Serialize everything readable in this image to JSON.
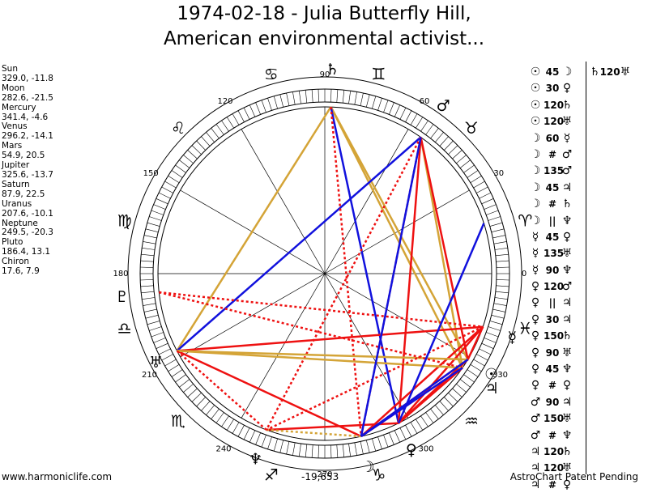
{
  "header": {
    "title_line1": "1974-02-18 - Julia Butterfly Hill,",
    "title_line2": "American environmental activist..."
  },
  "planets": [
    {
      "name": "Sun",
      "coords": "329.0, -11.8"
    },
    {
      "name": "Moon",
      "coords": "282.6, -21.5"
    },
    {
      "name": "Mercury",
      "coords": "341.4, -4.6"
    },
    {
      "name": "Venus",
      "coords": "296.2, -14.1"
    },
    {
      "name": "Mars",
      "coords": "54.9, 20.5"
    },
    {
      "name": "Jupiter",
      "coords": "325.6, -13.7"
    },
    {
      "name": "Saturn",
      "coords": "87.9, 22.5"
    },
    {
      "name": "Uranus",
      "coords": "207.6, -10.1"
    },
    {
      "name": "Neptune",
      "coords": "249.5, -20.3"
    },
    {
      "name": "Pluto",
      "coords": "186.4, 13.1"
    },
    {
      "name": "Chiron",
      "coords": "17.6, 7.9"
    }
  ],
  "wheel": {
    "degree_labels": [
      "90",
      "120",
      "60",
      "150",
      "30",
      "180",
      "0",
      "210",
      "330",
      "240",
      "300",
      "270"
    ],
    "zodiac_signs": [
      "♈",
      "♉",
      "♊",
      "♋",
      "♌",
      "♍",
      "♎",
      "♏",
      "♐",
      "♑",
      "♒",
      "♓"
    ],
    "planet_glyphs": {
      "sun": "☉",
      "moon": "☽",
      "mercury": "☿",
      "venus": "♀",
      "mars": "♂",
      "jupiter": "♃",
      "saturn": "♄",
      "uranus": "♅",
      "neptune": "♆",
      "pluto": "♇"
    }
  },
  "aspects": [
    {
      "p1": "☉",
      "aspect": "45",
      "p2": "☽"
    },
    {
      "p1": "☉",
      "aspect": "30",
      "p2": "♀"
    },
    {
      "p1": "☉",
      "aspect": "120",
      "p2": "♄"
    },
    {
      "p1": "☉",
      "aspect": "120",
      "p2": "♅"
    },
    {
      "p1": "☽",
      "aspect": "60",
      "p2": "☿"
    },
    {
      "p1": "☽",
      "aspect": "#",
      "p2": "♂"
    },
    {
      "p1": "☽",
      "aspect": "135",
      "p2": "♂"
    },
    {
      "p1": "☽",
      "aspect": "45",
      "p2": "♃"
    },
    {
      "p1": "☽",
      "aspect": "#",
      "p2": "♄"
    },
    {
      "p1": "☽",
      "aspect": "||",
      "p2": "♆"
    },
    {
      "p1": "☿",
      "aspect": "45",
      "p2": "♀"
    },
    {
      "p1": "☿",
      "aspect": "135",
      "p2": "♅"
    },
    {
      "p1": "☿",
      "aspect": "90",
      "p2": "♆"
    },
    {
      "p1": "♀",
      "aspect": "120",
      "p2": "♂"
    },
    {
      "p1": "♀",
      "aspect": "||",
      "p2": "♃"
    },
    {
      "p1": "♀",
      "aspect": "30",
      "p2": "♃"
    },
    {
      "p1": "♀",
      "aspect": "150",
      "p2": "♄"
    },
    {
      "p1": "♀",
      "aspect": "90",
      "p2": "♅"
    },
    {
      "p1": "♀",
      "aspect": "45",
      "p2": "♆"
    },
    {
      "p1": "♀",
      "aspect": "#",
      "p2": "♀"
    },
    {
      "p1": "♂",
      "aspect": "90",
      "p2": "♃"
    },
    {
      "p1": "♂",
      "aspect": "150",
      "p2": "♅"
    },
    {
      "p1": "♂",
      "aspect": "#",
      "p2": "♆"
    },
    {
      "p1": "♃",
      "aspect": "120",
      "p2": "♄"
    },
    {
      "p1": "♃",
      "aspect": "120",
      "p2": "♅"
    },
    {
      "p1": "♃",
      "aspect": "#",
      "p2": "♀"
    }
  ],
  "extra_aspect": {
    "p1": "♄",
    "aspect": "120",
    "p2": "♅"
  },
  "footer": {
    "left": "www.harmoniclife.com",
    "center": "-19,653",
    "right": "AstroChart Patent Pending"
  },
  "colors": {
    "red": "#ee1111",
    "blue": "#1111dd",
    "gold": "#d4a437"
  }
}
